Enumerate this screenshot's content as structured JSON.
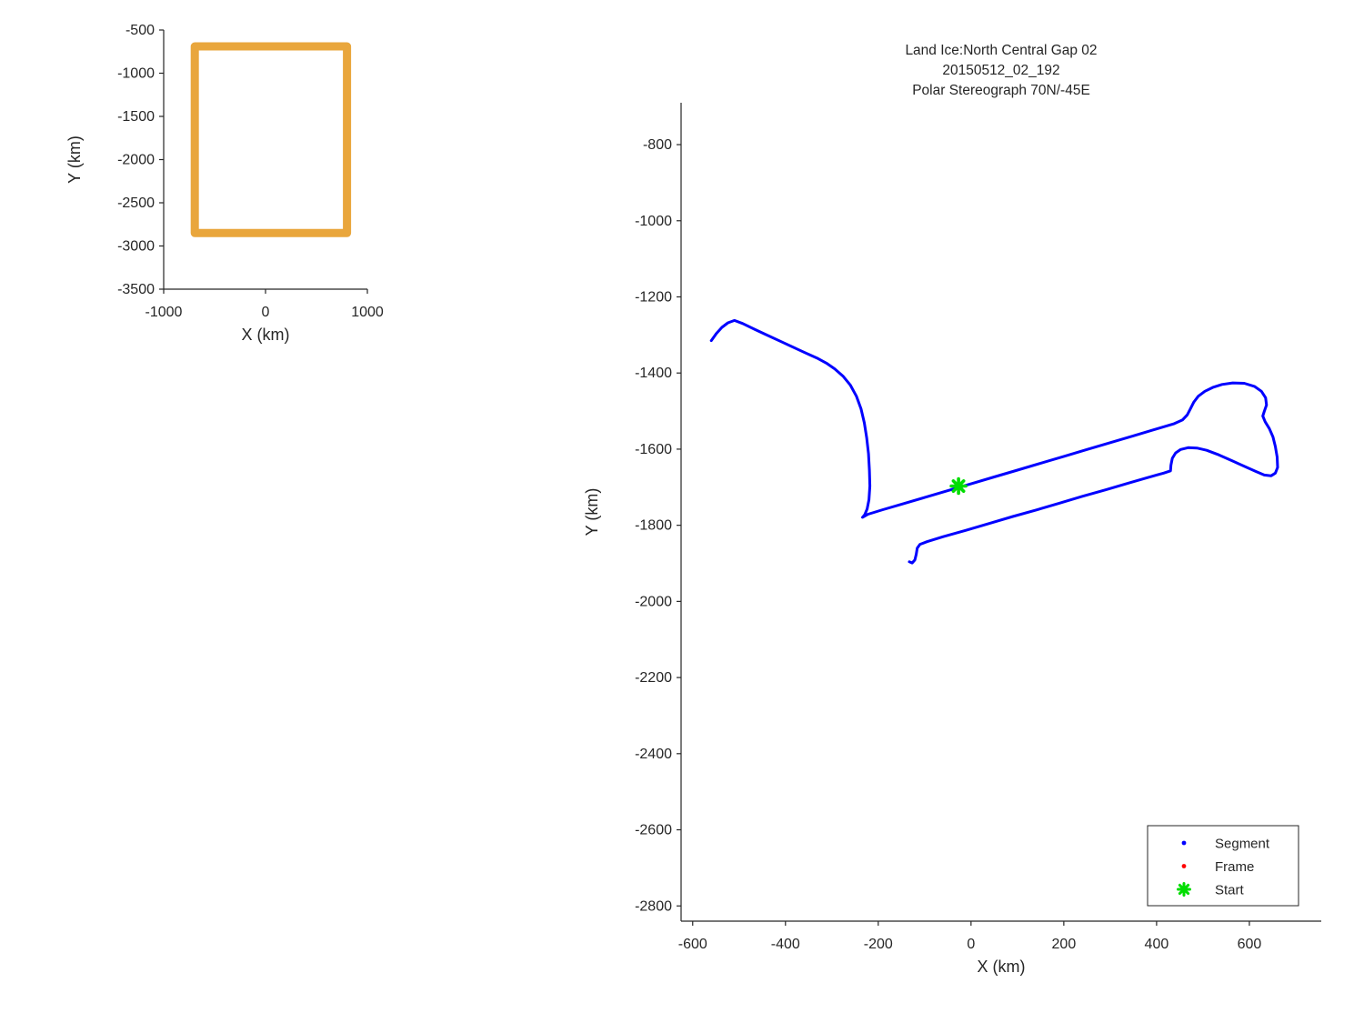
{
  "figure": {
    "background": "#FFFFFF",
    "text_color": "#262626"
  },
  "chart_data": [
    {
      "id": "overview",
      "type": "line",
      "title_lines": [],
      "xlabel": "X (km)",
      "ylabel": "Y (km)",
      "xlim": [
        -1000,
        1000
      ],
      "ylim": [
        -3500,
        -500
      ],
      "xticks": [
        -1000,
        0,
        1000
      ],
      "yticks": [
        -500,
        -1000,
        -1500,
        -2000,
        -2500,
        -3000,
        -3500
      ],
      "grid": false,
      "legend": null,
      "series": [
        {
          "name": "mission-overview-track",
          "color": "#E9A63C",
          "linewidth": 9,
          "points": [
            [
              -680,
              -690
            ],
            [
              800,
              -690
            ],
            [
              800,
              -2850
            ],
            [
              -695,
              -2850
            ],
            [
              -695,
              -690
            ],
            [
              -680,
              -690
            ]
          ]
        }
      ],
      "markers": []
    },
    {
      "id": "detail",
      "type": "line",
      "title_lines": [
        "Land Ice:North Central Gap 02",
        "20150512_02_192",
        "Polar Stereograph 70N/-45E"
      ],
      "xlabel": "X (km)",
      "ylabel": "Y (km)",
      "xlim": [
        -625,
        755
      ],
      "ylim": [
        -2840,
        -690
      ],
      "xticks": [
        -600,
        -400,
        -200,
        0,
        200,
        400,
        600
      ],
      "yticks": [
        -800,
        -1000,
        -1200,
        -1400,
        -1600,
        -1800,
        -2000,
        -2200,
        -2400,
        -2600,
        -2800
      ],
      "grid": false,
      "series": [
        {
          "name": "segment-track",
          "color": "#0000FF",
          "linewidth": 3,
          "points": [
            [
              -560,
              -1315
            ],
            [
              -549,
              -1296
            ],
            [
              -537,
              -1280
            ],
            [
              -524,
              -1268
            ],
            [
              -510,
              -1262
            ],
            [
              -492,
              -1270
            ],
            [
              -465,
              -1286
            ],
            [
              -435,
              -1303
            ],
            [
              -405,
              -1320
            ],
            [
              -375,
              -1337
            ],
            [
              -348,
              -1352
            ],
            [
              -330,
              -1362
            ],
            [
              -312,
              -1374
            ],
            [
              -294,
              -1389
            ],
            [
              -276,
              -1408
            ],
            [
              -260,
              -1432
            ],
            [
              -247,
              -1461
            ],
            [
              -237,
              -1494
            ],
            [
              -230,
              -1531
            ],
            [
              -225,
              -1570
            ],
            [
              -221,
              -1612
            ],
            [
              -219,
              -1655
            ],
            [
              -218,
              -1697
            ],
            [
              -220,
              -1733
            ],
            [
              -224,
              -1757
            ],
            [
              -229,
              -1772
            ],
            [
              -234,
              -1779
            ],
            [
              -222,
              -1771
            ],
            [
              -190,
              -1759
            ],
            [
              -150,
              -1745
            ],
            [
              -100,
              -1727
            ],
            [
              -50,
              -1709
            ],
            [
              0,
              -1691
            ],
            [
              50,
              -1673
            ],
            [
              100,
              -1655
            ],
            [
              150,
              -1637
            ],
            [
              200,
              -1619
            ],
            [
              250,
              -1601
            ],
            [
              300,
              -1583
            ],
            [
              350,
              -1565
            ],
            [
              400,
              -1547
            ],
            [
              438,
              -1533
            ],
            [
              456,
              -1523
            ],
            [
              466,
              -1510
            ],
            [
              473,
              -1494
            ],
            [
              480,
              -1477
            ],
            [
              490,
              -1461
            ],
            [
              504,
              -1448
            ],
            [
              521,
              -1438
            ],
            [
              541,
              -1430
            ],
            [
              564,
              -1426
            ],
            [
              589,
              -1427
            ],
            [
              611,
              -1435
            ],
            [
              626,
              -1448
            ],
            [
              635,
              -1465
            ],
            [
              637,
              -1484
            ],
            [
              632,
              -1501
            ],
            [
              629,
              -1513
            ],
            [
              634,
              -1528
            ],
            [
              643,
              -1546
            ],
            [
              651,
              -1568
            ],
            [
              656,
              -1593
            ],
            [
              660,
              -1621
            ],
            [
              661,
              -1648
            ],
            [
              656,
              -1663
            ],
            [
              647,
              -1670
            ],
            [
              632,
              -1668
            ],
            [
              613,
              -1658
            ],
            [
              589,
              -1645
            ],
            [
              562,
              -1630
            ],
            [
              534,
              -1615
            ],
            [
              508,
              -1603
            ],
            [
              487,
              -1597
            ],
            [
              468,
              -1596
            ],
            [
              452,
              -1601
            ],
            [
              441,
              -1610
            ],
            [
              434,
              -1624
            ],
            [
              431,
              -1642
            ],
            [
              430,
              -1657
            ],
            [
              415,
              -1663
            ],
            [
              380,
              -1675
            ],
            [
              340,
              -1689
            ],
            [
              290,
              -1707
            ],
            [
              240,
              -1724
            ],
            [
              190,
              -1742
            ],
            [
              140,
              -1760
            ],
            [
              90,
              -1777
            ],
            [
              40,
              -1795
            ],
            [
              -10,
              -1813
            ],
            [
              -60,
              -1830
            ],
            [
              -95,
              -1843
            ],
            [
              -110,
              -1850
            ],
            [
              -116,
              -1860
            ],
            [
              -118,
              -1876
            ],
            [
              -121,
              -1891
            ],
            [
              -127,
              -1899
            ],
            [
              -133,
              -1896
            ]
          ]
        }
      ],
      "markers": [
        {
          "name": "Start",
          "x": -27,
          "y": -1697,
          "color": "#00DD00",
          "shape": "asterisk"
        }
      ],
      "legend": {
        "position": "bottom-right",
        "entries": [
          {
            "label": "Segment",
            "color": "#0000FF",
            "marker": "dot"
          },
          {
            "label": "Frame",
            "color": "#FF0000",
            "marker": "dot"
          },
          {
            "label": "Start",
            "color": "#00DD00",
            "marker": "asterisk"
          }
        ]
      }
    }
  ]
}
